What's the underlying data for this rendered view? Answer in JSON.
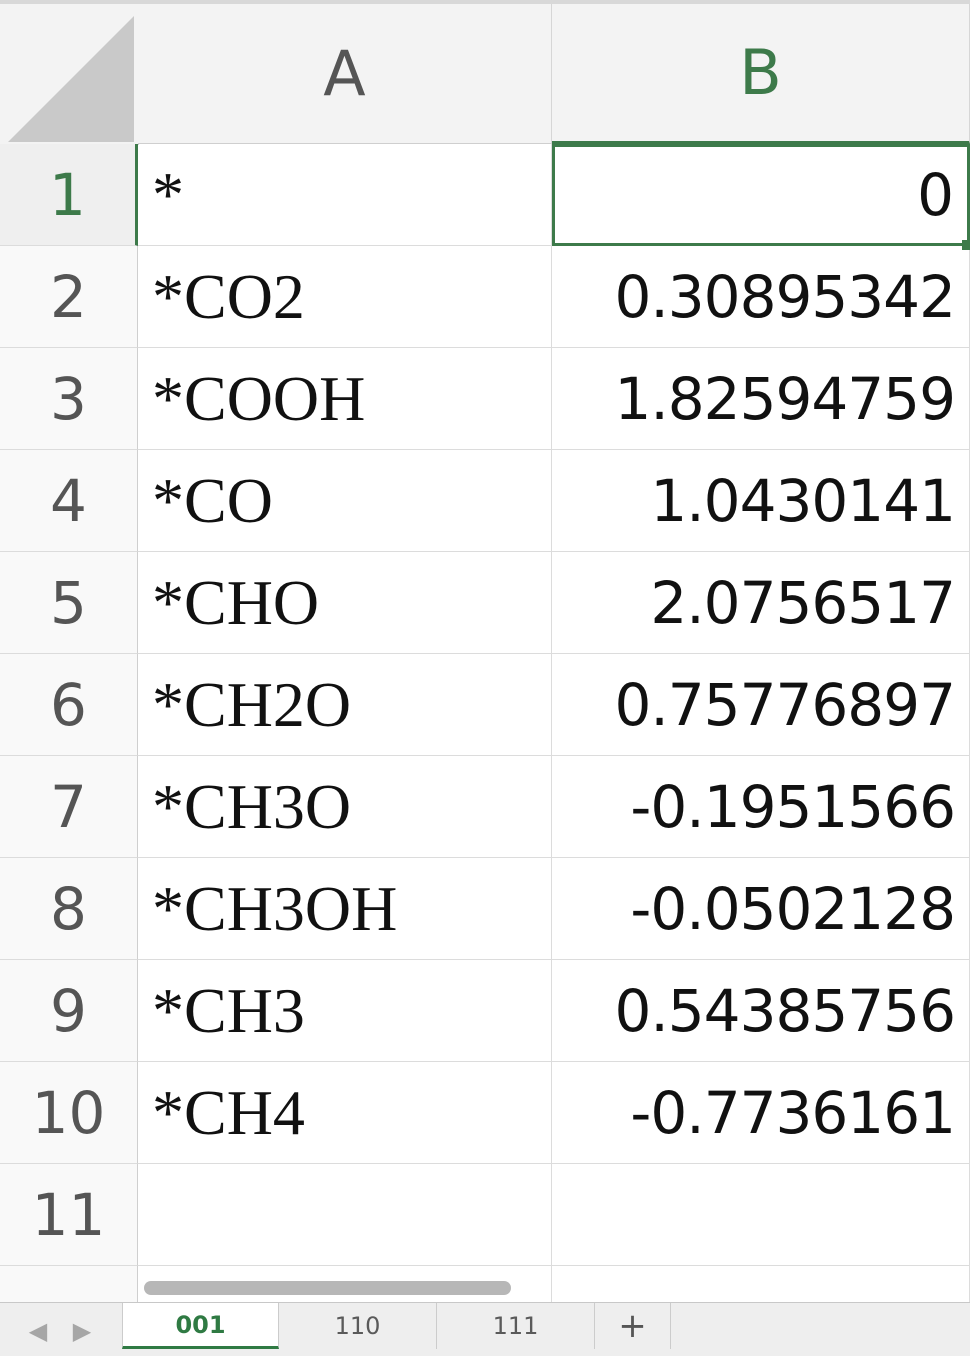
{
  "columns": [
    "A",
    "B"
  ],
  "rows": [
    {
      "num": "1",
      "a": "*",
      "b": "0"
    },
    {
      "num": "2",
      "a": "*CO2",
      "b": "0.30895342"
    },
    {
      "num": "3",
      "a": "*COOH",
      "b": "1.82594759"
    },
    {
      "num": "4",
      "a": "*CO",
      "b": "1.0430141"
    },
    {
      "num": "5",
      "a": "*CHO",
      "b": "2.0756517"
    },
    {
      "num": "6",
      "a": "*CH2O",
      "b": "0.75776897"
    },
    {
      "num": "7",
      "a": "*CH3O",
      "b": "-0.1951566"
    },
    {
      "num": "8",
      "a": "*CH3OH",
      "b": "-0.0502128"
    },
    {
      "num": "9",
      "a": "*CH3",
      "b": "0.54385756"
    },
    {
      "num": "10",
      "a": "*CH4",
      "b": "-0.7736161"
    },
    {
      "num": "11",
      "a": "",
      "b": ""
    }
  ],
  "selection": {
    "row": "1",
    "column": "B"
  },
  "tabs": [
    {
      "label": "001",
      "active": true
    },
    {
      "label": "110",
      "active": false
    },
    {
      "label": "111",
      "active": false
    }
  ],
  "add_tab_label": "+",
  "nav": {
    "prev": "◀",
    "next": "▶"
  },
  "colors": {
    "accent": "#3d7a4a"
  }
}
